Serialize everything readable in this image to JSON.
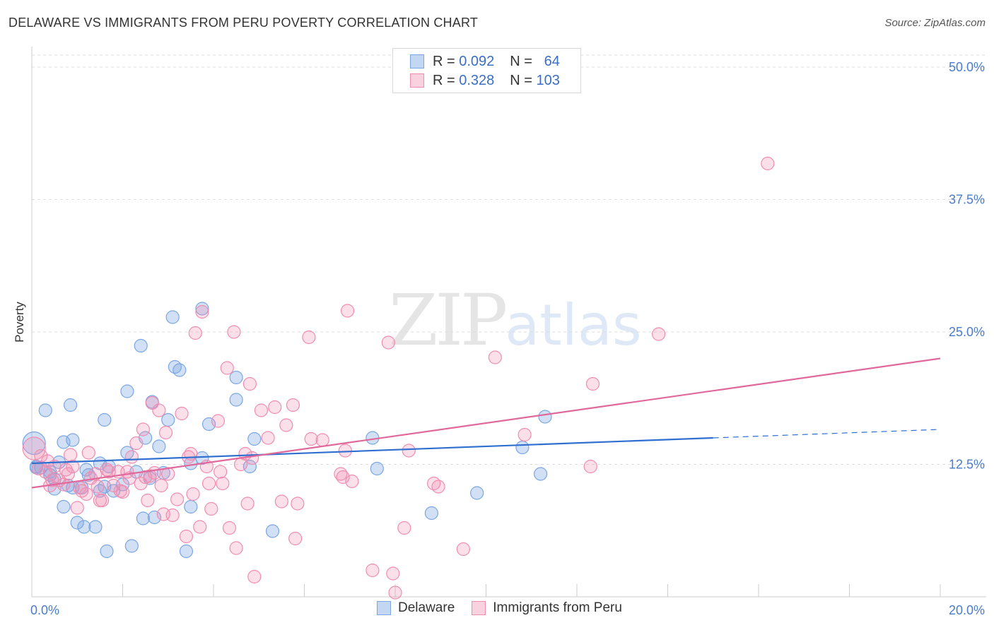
{
  "title": "DELAWARE VS IMMIGRANTS FROM PERU POVERTY CORRELATION CHART",
  "source": "Source: ZipAtlas.com",
  "watermark": {
    "zip": "ZIP",
    "atlas": "atlas"
  },
  "legend": {
    "rows": [
      {
        "r_label": "R =",
        "r_value": "0.092",
        "n_label": "N =",
        "n_value": "64",
        "color": "#7aa6e3"
      },
      {
        "r_label": "R =",
        "r_value": "0.328",
        "n_label": "N =",
        "n_value": "103",
        "color": "#f08cb0"
      }
    ]
  },
  "bottom_legend": [
    {
      "label": "Delaware",
      "color": "#7aa6e3"
    },
    {
      "label": "Immigrants from Peru",
      "color": "#f08cb0"
    }
  ],
  "chart_data": {
    "type": "scatter",
    "title": "DELAWARE VS IMMIGRANTS FROM PERU POVERTY CORRELATION CHART",
    "xlabel": "",
    "ylabel": "Poverty",
    "xlim": [
      0,
      20
    ],
    "ylim": [
      0,
      50
    ],
    "x_tick_labels": [
      "0.0%",
      "20.0%"
    ],
    "y_tick_values": [
      12.5,
      25.0,
      37.5,
      50.0
    ],
    "y_tick_labels": [
      "12.5%",
      "25.0%",
      "37.5%",
      "50.0%"
    ],
    "grid": true,
    "series": [
      {
        "name": "Delaware",
        "color": "#7aa6e3",
        "line_color": "#2e6fd0",
        "trend": {
          "x0": 0,
          "y0": 12.6,
          "x1": 15.0,
          "y1": 15.0,
          "dash_to_x": 20,
          "dash_to_y": 15.8
        },
        "points": [
          [
            0.05,
            14.5
          ],
          [
            0.1,
            12.3
          ],
          [
            0.2,
            12.2
          ],
          [
            0.3,
            17.6
          ],
          [
            0.4,
            11.5
          ],
          [
            0.4,
            11.8
          ],
          [
            0.5,
            10.2
          ],
          [
            0.5,
            11.1
          ],
          [
            0.6,
            12.7
          ],
          [
            0.7,
            8.5
          ],
          [
            0.7,
            14.6
          ],
          [
            0.8,
            10.5
          ],
          [
            0.85,
            18.1
          ],
          [
            0.9,
            14.8
          ],
          [
            0.9,
            10.3
          ],
          [
            1.0,
            7.0
          ],
          [
            1.1,
            10.3
          ],
          [
            1.15,
            6.6
          ],
          [
            1.2,
            12.0
          ],
          [
            1.25,
            11.5
          ],
          [
            1.4,
            6.6
          ],
          [
            1.5,
            12.6
          ],
          [
            1.6,
            16.7
          ],
          [
            1.6,
            10.4
          ],
          [
            1.65,
            4.3
          ],
          [
            1.7,
            12.3
          ],
          [
            1.8,
            10.0
          ],
          [
            2.0,
            10.6
          ],
          [
            2.1,
            13.6
          ],
          [
            2.1,
            19.4
          ],
          [
            2.2,
            4.8
          ],
          [
            2.3,
            11.8
          ],
          [
            2.4,
            23.7
          ],
          [
            2.45,
            7.4
          ],
          [
            2.5,
            15.0
          ],
          [
            2.6,
            11.2
          ],
          [
            2.65,
            18.4
          ],
          [
            2.7,
            7.5
          ],
          [
            2.8,
            14.2
          ],
          [
            2.9,
            11.7
          ],
          [
            3.0,
            16.7
          ],
          [
            3.1,
            26.4
          ],
          [
            3.15,
            21.7
          ],
          [
            3.25,
            21.4
          ],
          [
            3.4,
            4.3
          ],
          [
            3.5,
            8.5
          ],
          [
            3.75,
            27.2
          ],
          [
            3.75,
            13.1
          ],
          [
            3.9,
            16.3
          ],
          [
            4.5,
            20.7
          ],
          [
            4.5,
            18.6
          ],
          [
            4.8,
            12.3
          ],
          [
            4.9,
            14.9
          ],
          [
            5.3,
            6.2
          ],
          [
            7.5,
            15.0
          ],
          [
            7.6,
            12.1
          ],
          [
            8.8,
            7.9
          ],
          [
            9.8,
            9.8
          ],
          [
            10.8,
            14.1
          ],
          [
            11.2,
            11.6
          ],
          [
            11.3,
            17.0
          ],
          [
            0.1,
            12.2
          ],
          [
            1.5,
            10.0
          ],
          [
            3.5,
            12.6
          ]
        ]
      },
      {
        "name": "Immigrants from Peru",
        "color": "#f08cb0",
        "line_color": "#e0689a",
        "trend": {
          "x0": 0,
          "y0": 10.3,
          "x1": 20,
          "y1": 22.5
        },
        "points": [
          [
            0.05,
            14.0
          ],
          [
            0.15,
            12.1
          ],
          [
            0.2,
            13.3
          ],
          [
            0.3,
            11.8
          ],
          [
            0.35,
            12.8
          ],
          [
            0.4,
            10.5
          ],
          [
            0.45,
            11.0
          ],
          [
            0.5,
            12.3
          ],
          [
            0.6,
            11.0
          ],
          [
            0.7,
            10.6
          ],
          [
            0.75,
            12.0
          ],
          [
            0.8,
            11.6
          ],
          [
            0.85,
            13.4
          ],
          [
            0.9,
            12.3
          ],
          [
            1.0,
            8.4
          ],
          [
            1.05,
            10.3
          ],
          [
            1.1,
            10.0
          ],
          [
            1.2,
            9.7
          ],
          [
            1.25,
            13.6
          ],
          [
            1.3,
            11.2
          ],
          [
            1.4,
            11.6
          ],
          [
            1.45,
            10.4
          ],
          [
            1.5,
            9.1
          ],
          [
            1.55,
            9.1
          ],
          [
            1.65,
            12.0
          ],
          [
            1.7,
            11.8
          ],
          [
            1.8,
            10.5
          ],
          [
            1.9,
            11.8
          ],
          [
            1.95,
            10.0
          ],
          [
            2.0,
            9.9
          ],
          [
            2.1,
            11.8
          ],
          [
            2.15,
            11.2
          ],
          [
            2.2,
            13.2
          ],
          [
            2.3,
            14.5
          ],
          [
            2.4,
            10.7
          ],
          [
            2.45,
            15.8
          ],
          [
            2.5,
            11.3
          ],
          [
            2.55,
            9.1
          ],
          [
            2.6,
            11.4
          ],
          [
            2.65,
            18.3
          ],
          [
            2.7,
            11.7
          ],
          [
            2.8,
            17.6
          ],
          [
            2.85,
            10.5
          ],
          [
            2.9,
            7.8
          ],
          [
            2.95,
            15.5
          ],
          [
            3.0,
            11.6
          ],
          [
            3.1,
            7.7
          ],
          [
            3.2,
            9.2
          ],
          [
            3.3,
            17.3
          ],
          [
            3.4,
            5.7
          ],
          [
            3.45,
            13.2
          ],
          [
            3.5,
            13.5
          ],
          [
            3.55,
            9.7
          ],
          [
            3.6,
            24.9
          ],
          [
            3.7,
            6.6
          ],
          [
            3.75,
            26.9
          ],
          [
            3.85,
            12.3
          ],
          [
            3.9,
            10.7
          ],
          [
            3.95,
            8.3
          ],
          [
            4.1,
            16.6
          ],
          [
            4.15,
            11.8
          ],
          [
            4.2,
            10.7
          ],
          [
            4.3,
            21.6
          ],
          [
            4.35,
            6.5
          ],
          [
            4.45,
            25.0
          ],
          [
            4.5,
            4.6
          ],
          [
            4.6,
            12.5
          ],
          [
            4.7,
            13.5
          ],
          [
            4.75,
            8.8
          ],
          [
            4.8,
            20.1
          ],
          [
            4.85,
            13.1
          ],
          [
            4.9,
            1.9
          ],
          [
            5.05,
            17.6
          ],
          [
            5.2,
            15.0
          ],
          [
            5.35,
            17.9
          ],
          [
            5.5,
            9.0
          ],
          [
            5.6,
            16.2
          ],
          [
            5.75,
            18.1
          ],
          [
            5.8,
            5.5
          ],
          [
            5.85,
            8.8
          ],
          [
            6.1,
            24.5
          ],
          [
            6.15,
            14.9
          ],
          [
            6.4,
            14.8
          ],
          [
            6.8,
            11.6
          ],
          [
            6.85,
            11.3
          ],
          [
            6.9,
            13.8
          ],
          [
            6.95,
            27.0
          ],
          [
            7.05,
            10.9
          ],
          [
            7.5,
            2.5
          ],
          [
            7.85,
            24.0
          ],
          [
            7.95,
            2.2
          ],
          [
            8.0,
            0.4
          ],
          [
            8.2,
            6.5
          ],
          [
            8.3,
            13.8
          ],
          [
            8.85,
            10.7
          ],
          [
            8.95,
            10.4
          ],
          [
            9.5,
            4.5
          ],
          [
            10.2,
            22.6
          ],
          [
            10.85,
            15.3
          ],
          [
            12.3,
            12.3
          ],
          [
            12.35,
            20.1
          ],
          [
            13.8,
            24.8
          ],
          [
            16.2,
            40.9
          ]
        ]
      }
    ]
  }
}
